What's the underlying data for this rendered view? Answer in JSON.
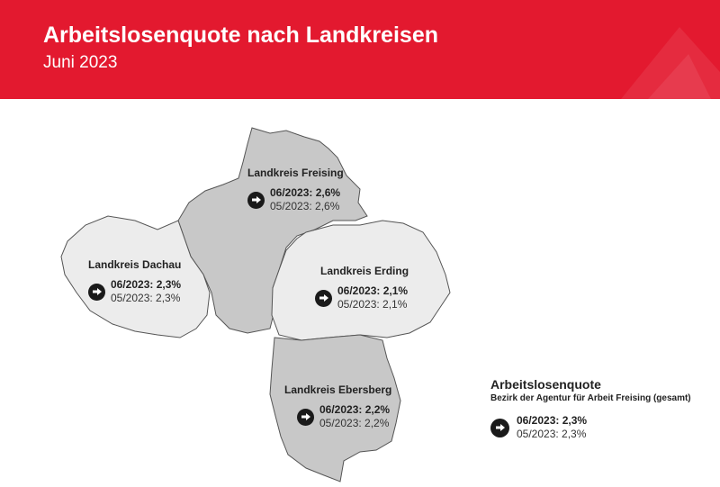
{
  "header": {
    "title": "Arbeitslosenquote nach Landkreisen",
    "subtitle": "Juni 2023",
    "color_red": "#e3192f"
  },
  "map": {
    "districts": [
      {
        "id": "freising",
        "name": "Landkreis Freising",
        "current_label": "06/2023: 2,6%",
        "previous_label": "05/2023: 2,6%",
        "current": 2.6,
        "previous": 2.6,
        "trend": "unchanged",
        "fill": "#c8c8c8"
      },
      {
        "id": "dachau",
        "name": "Landkreis Dachau",
        "current_label": "06/2023: 2,3%",
        "previous_label": "05/2023: 2,3%",
        "current": 2.3,
        "previous": 2.3,
        "trend": "unchanged",
        "fill": "#ececec"
      },
      {
        "id": "erding",
        "name": "Landkreis Erding",
        "current_label": "06/2023: 2,1%",
        "previous_label": "05/2023: 2,1%",
        "current": 2.1,
        "previous": 2.1,
        "trend": "unchanged",
        "fill": "#ececec"
      },
      {
        "id": "ebersberg",
        "name": "Landkreis Ebersberg",
        "current_label": "06/2023: 2,2%",
        "previous_label": "05/2023: 2,2%",
        "current": 2.2,
        "previous": 2.2,
        "trend": "unchanged",
        "fill": "#c8c8c8"
      }
    ],
    "trend_icon": "arrow-right-icon"
  },
  "legend": {
    "title": "Arbeitslosenquote",
    "subtitle": "Bezirk der Agentur für Arbeit Freising (gesamt)",
    "current_label": "06/2023: 2,3%",
    "previous_label": "05/2023: 2,3%"
  }
}
